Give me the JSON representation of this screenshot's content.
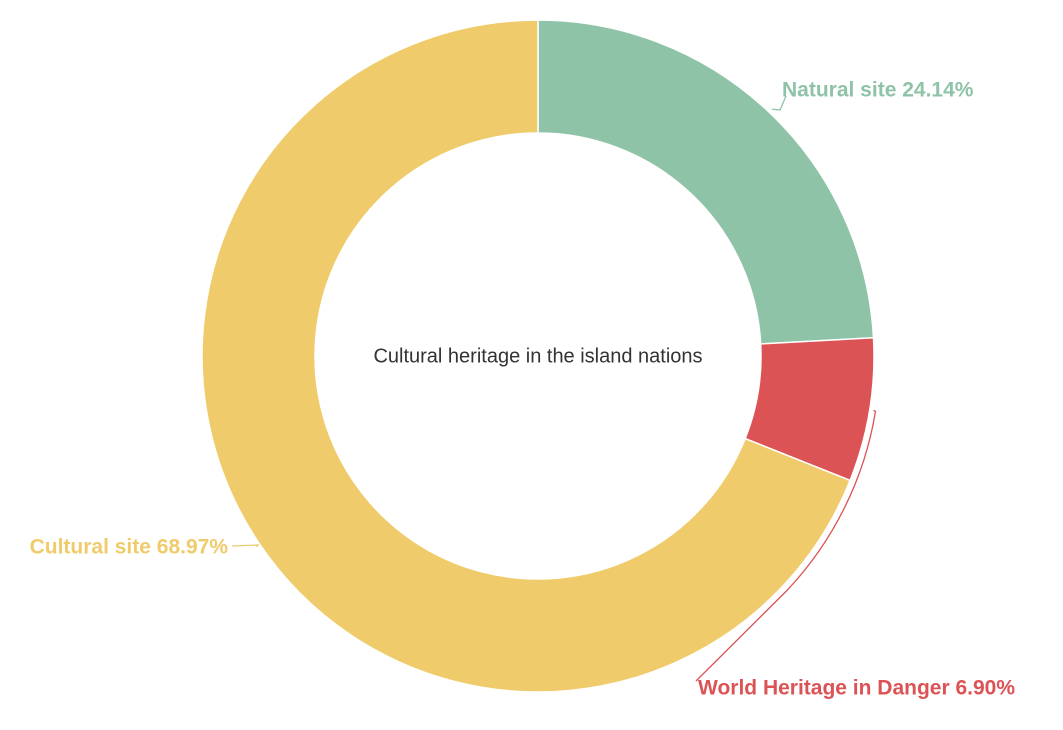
{
  "chart_data": {
    "type": "pie",
    "variant": "donut",
    "title": "Cultural heritage in the island nations",
    "slices": [
      {
        "name": "Natural site",
        "value": 24.14,
        "label": "Natural site 24.14%",
        "color": "#8fc3a7"
      },
      {
        "name": "World Heritage in Danger",
        "value": 6.9,
        "label": "World Heritage in Danger 6.90%",
        "color": "#dc5356"
      },
      {
        "name": "Cultural site",
        "value": 68.97,
        "label": "Cultural site 68.97%",
        "color": "#efcb6b"
      }
    ],
    "legend": "none",
    "grid": false
  }
}
